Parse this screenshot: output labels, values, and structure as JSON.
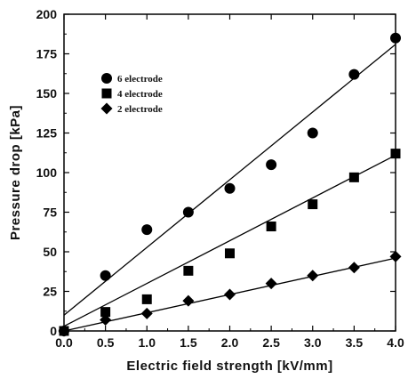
{
  "chart_data": {
    "type": "scatter",
    "xlabel": "Electric field strength [kV/mm]",
    "ylabel": "Pressure drop [kPa]",
    "xlim": [
      0.0,
      4.0
    ],
    "ylim": [
      0,
      200
    ],
    "xticks": [
      0.0,
      0.5,
      1.0,
      1.5,
      2.0,
      2.5,
      3.0,
      3.5,
      4.0
    ],
    "xtick_labels": [
      "0.0",
      "0.5",
      "1.0",
      "1.5",
      "2.0",
      "2.5",
      "3.0",
      "3.5",
      "4.0"
    ],
    "yticks": [
      0,
      25,
      50,
      75,
      100,
      125,
      150,
      175,
      200
    ],
    "ytick_labels": [
      "0",
      "25",
      "50",
      "75",
      "100",
      "125",
      "150",
      "175",
      "200"
    ],
    "legend_position": "upper-left",
    "series": [
      {
        "name": "6 electrode",
        "marker": "circle",
        "x": [
          0.0,
          0.5,
          1.0,
          1.5,
          2.0,
          2.5,
          3.0,
          3.5,
          4.0
        ],
        "y": [
          0,
          35,
          64,
          75,
          90,
          105,
          125,
          162,
          185
        ],
        "fit_line": [
          [
            0.0,
            10
          ],
          [
            4.0,
            181
          ]
        ]
      },
      {
        "name": "4 electrode",
        "marker": "square",
        "x": [
          0.0,
          0.5,
          1.0,
          1.5,
          2.0,
          2.5,
          3.0,
          3.5,
          4.0
        ],
        "y": [
          0,
          12,
          20,
          38,
          49,
          66,
          80,
          97,
          112
        ],
        "fit_line": [
          [
            0.0,
            3
          ],
          [
            4.0,
            111
          ]
        ]
      },
      {
        "name": "2 electrode",
        "marker": "diamond",
        "x": [
          0.0,
          0.5,
          1.0,
          1.5,
          2.0,
          2.5,
          3.0,
          3.5,
          4.0
        ],
        "y": [
          0,
          7,
          11,
          19,
          23,
          30,
          35,
          40,
          47
        ],
        "fit_line": [
          [
            0.0,
            0
          ],
          [
            4.0,
            46
          ]
        ]
      }
    ],
    "colors": {
      "marker": "#000000",
      "line": "#000000",
      "background": "#ffffff"
    }
  }
}
